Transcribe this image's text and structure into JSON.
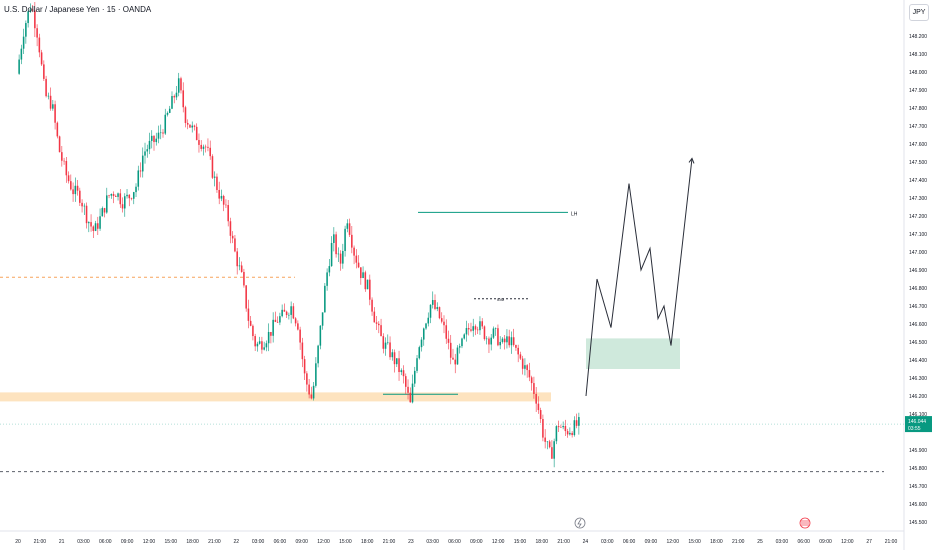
{
  "header": {
    "title": "U.S. Dollar / Japanese Yen · 15 · OANDA",
    "symbol_badge": "JPY"
  },
  "price_axis": {
    "current_price": "146.044",
    "countdown": "03:55"
  },
  "annotations": {
    "high_label": "LH",
    "mid_label": "IDM"
  },
  "colors": {
    "up": "#089981",
    "down": "#f23645",
    "supply_zone": "#fde3bf",
    "demand_zone": "#cfe9dc",
    "projection": "#2a2e39"
  },
  "chart_data": {
    "type": "candlestick",
    "ylim": [
      145.45,
      148.4
    ],
    "y_ticks": [
      "148.200",
      "148.100",
      "148.000",
      "147.900",
      "147.800",
      "147.700",
      "147.600",
      "147.500",
      "147.400",
      "147.300",
      "147.200",
      "147.100",
      "147.000",
      "146.900",
      "146.800",
      "146.700",
      "146.600",
      "146.500",
      "146.400",
      "146.300",
      "146.200",
      "146.100",
      "145.900",
      "145.800",
      "145.700",
      "145.600",
      "145.500"
    ],
    "x_ticks": [
      "20",
      "21:00",
      "21",
      "03:00",
      "06:00",
      "09:00",
      "12:00",
      "15:00",
      "18:00",
      "21:00",
      "22",
      "03:00",
      "06:00",
      "09:00",
      "12:00",
      "15:00",
      "18:00",
      "21:00",
      "23",
      "03:00",
      "06:00",
      "09:00",
      "12:00",
      "15:00",
      "18:00",
      "21:00",
      "24",
      "03:00",
      "06:00",
      "09:00",
      "12:00",
      "15:00",
      "18:00",
      "21:00",
      "25",
      "03:00",
      "06:00",
      "09:00",
      "12:00",
      "27",
      "21:00"
    ],
    "price_path": [
      147.99,
      148.24,
      148.38,
      148.2,
      147.87,
      147.82,
      147.57,
      147.43,
      147.34,
      147.31,
      147.19,
      147.11,
      147.2,
      147.31,
      147.34,
      147.28,
      147.31,
      147.37,
      147.55,
      147.6,
      147.63,
      147.71,
      147.82,
      147.94,
      147.75,
      147.68,
      147.62,
      147.58,
      147.42,
      147.3,
      147.2,
      147.0,
      146.86,
      146.62,
      146.48,
      146.5,
      146.55,
      146.62,
      146.65,
      146.7,
      146.6,
      146.3,
      146.18,
      146.5,
      146.85,
      147.08,
      146.92,
      147.2,
      147.0,
      146.88,
      146.8,
      146.62,
      146.5,
      146.45,
      146.38,
      146.3,
      146.15,
      146.45,
      146.6,
      146.72,
      146.65,
      146.55,
      146.38,
      146.45,
      146.55,
      146.62,
      146.58,
      146.52,
      146.55,
      146.48,
      146.52,
      146.45,
      146.38,
      146.3,
      146.18,
      145.97,
      145.86,
      146.05,
      146.0,
      146.02,
      146.044
    ],
    "zones": [
      {
        "type": "supply",
        "from": 146.22,
        "to": 146.17
      },
      {
        "type": "demand",
        "from": 146.52,
        "to": 146.35
      }
    ],
    "levels": [
      {
        "label": "LH",
        "price": 147.22
      },
      {
        "label": "IDM",
        "price": 146.74
      },
      {
        "label": "low",
        "price": 146.21
      },
      {
        "label": "dashed-low",
        "price": 145.78
      },
      {
        "label": "dashed-high",
        "price": 146.86
      }
    ],
    "projection": [
      146.2,
      146.85,
      146.58,
      147.38,
      146.9,
      147.02,
      146.63,
      146.7,
      146.48,
      147.52
    ]
  }
}
